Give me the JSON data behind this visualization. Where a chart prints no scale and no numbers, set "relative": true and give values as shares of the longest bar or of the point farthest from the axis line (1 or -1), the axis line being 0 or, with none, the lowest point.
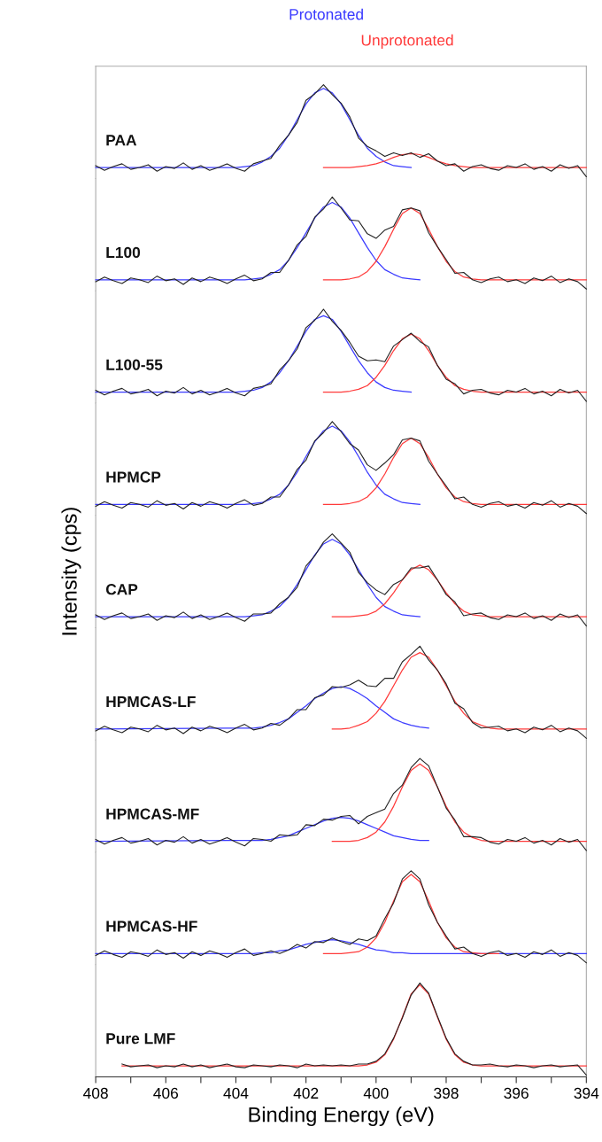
{
  "chart_data": [
    {
      "type": "line",
      "title": "PAA",
      "relative": true,
      "tick_labels": false,
      "xlim": [
        408,
        394
      ],
      "legend": "top",
      "x": [
        408,
        407.75,
        407.5,
        407.25,
        407,
        406.75,
        406.5,
        406.25,
        406,
        405.75,
        405.5,
        405.25,
        405,
        404.75,
        404.5,
        404.25,
        404,
        403.75,
        403.5,
        403.25,
        403,
        402.75,
        402.5,
        402.25,
        402,
        401.75,
        401.5,
        401.25,
        401,
        400.75,
        400.5,
        400.25,
        400,
        399.75,
        399.5,
        399.25,
        399,
        398.75,
        398.5,
        398.25,
        398,
        397.75,
        397.5,
        397.25,
        397,
        396.75,
        396.5,
        396.25,
        396,
        395.75,
        395.5,
        395.25,
        395,
        394.75,
        394.5,
        394.25,
        394
      ],
      "series": [
        {
          "color": "#222222",
          "values": [
            0.12,
            0.07,
            0.11,
            0.14,
            0.08,
            0.1,
            0.13,
            0.06,
            0.11,
            0.09,
            0.15,
            0.08,
            0.12,
            0.07,
            0.1,
            0.14,
            0.09,
            0.06,
            0.14,
            0.17,
            0.2,
            0.34,
            0.45,
            0.59,
            0.83,
            0.9,
            1.0,
            0.89,
            0.8,
            0.65,
            0.42,
            0.33,
            0.28,
            0.22,
            0.26,
            0.23,
            0.26,
            0.21,
            0.25,
            0.17,
            0.12,
            0.14,
            0.06,
            0.11,
            0.13,
            0.09,
            0.07,
            0.12,
            0.1,
            0.14,
            0.08,
            0.11,
            0.06,
            0.13,
            0.09,
            0.12,
            0.0
          ]
        },
        {
          "name": "Protonated",
          "color": "#3a3aff",
          "x": [
            408,
            404,
            403.75,
            403.5,
            403.25,
            403,
            402.75,
            402.5,
            402.25,
            402,
            401.75,
            401.5,
            401.25,
            401,
            400.75,
            400.5,
            400.25,
            400,
            399.75,
            399.5,
            399.25,
            399
          ],
          "values": [
            0.1,
            0.1,
            0.11,
            0.12,
            0.16,
            0.22,
            0.31,
            0.45,
            0.62,
            0.79,
            0.91,
            0.96,
            0.91,
            0.79,
            0.62,
            0.45,
            0.31,
            0.22,
            0.16,
            0.12,
            0.11,
            0.1
          ]
        },
        {
          "name": "Unprotonated",
          "color": "#ff3a3a",
          "x": [
            401.5,
            401.25,
            401,
            400.75,
            400.5,
            400.25,
            400,
            399.75,
            399.5,
            399.25,
            399,
            398.75,
            398.5,
            398.25,
            398,
            397.75,
            397.5,
            397.25,
            397,
            396.75,
            396.5,
            394
          ],
          "values": [
            0.1,
            0.1,
            0.1,
            0.1,
            0.11,
            0.12,
            0.14,
            0.17,
            0.21,
            0.24,
            0.25,
            0.24,
            0.21,
            0.17,
            0.14,
            0.12,
            0.11,
            0.1,
            0.1,
            0.1,
            0.1,
            0.1
          ]
        }
      ]
    },
    {
      "type": "line",
      "title": "L100",
      "relative": true,
      "tick_labels": false,
      "xlim": [
        408,
        394
      ],
      "x": [
        408,
        407.75,
        407.5,
        407.25,
        407,
        406.75,
        406.5,
        406.25,
        406,
        405.75,
        405.5,
        405.25,
        405,
        404.75,
        404.5,
        404.25,
        404,
        403.75,
        403.5,
        403.25,
        403,
        402.75,
        402.5,
        402.25,
        402,
        401.75,
        401.5,
        401.25,
        401,
        400.75,
        400.5,
        400.25,
        400,
        399.75,
        399.5,
        399.25,
        399,
        398.75,
        398.5,
        398.25,
        398,
        397.75,
        397.5,
        397.25,
        397,
        396.75,
        396.5,
        396.25,
        396,
        395.75,
        395.5,
        395.25,
        395,
        394.75,
        394.5,
        394.25,
        394
      ],
      "series": [
        {
          "color": "#222222",
          "values": [
            0.08,
            0.13,
            0.09,
            0.06,
            0.12,
            0.1,
            0.07,
            0.14,
            0.09,
            0.11,
            0.05,
            0.12,
            0.08,
            0.13,
            0.1,
            0.06,
            0.11,
            0.15,
            0.09,
            0.11,
            0.18,
            0.18,
            0.31,
            0.48,
            0.57,
            0.78,
            0.87,
            1.0,
            0.88,
            0.75,
            0.74,
            0.6,
            0.55,
            0.64,
            0.68,
            0.86,
            0.88,
            0.85,
            0.61,
            0.46,
            0.32,
            0.17,
            0.18,
            0.1,
            0.07,
            0.11,
            0.13,
            0.08,
            0.1,
            0.06,
            0.12,
            0.09,
            0.14,
            0.07,
            0.11,
            0.08,
            0.0
          ]
        },
        {
          "color": "#3a3aff",
          "x": [
            408,
            403.75,
            403.5,
            403.25,
            403,
            402.75,
            402.5,
            402.25,
            402,
            401.75,
            401.5,
            401.25,
            401,
            400.75,
            400.5,
            400.25,
            400,
            399.75,
            399.5,
            399.25,
            399,
            398.75
          ],
          "values": [
            0.1,
            0.1,
            0.11,
            0.12,
            0.16,
            0.21,
            0.31,
            0.45,
            0.61,
            0.77,
            0.89,
            0.94,
            0.89,
            0.77,
            0.61,
            0.45,
            0.31,
            0.21,
            0.16,
            0.12,
            0.11,
            0.1
          ]
        },
        {
          "color": "#ff3a3a",
          "x": [
            401.5,
            401.25,
            401,
            400.75,
            400.5,
            400.25,
            400,
            399.75,
            399.5,
            399.25,
            399,
            398.75,
            398.5,
            398.25,
            398,
            397.75,
            397.5,
            397.25,
            397,
            396.75,
            396.5,
            394
          ],
          "values": [
            0.1,
            0.1,
            0.1,
            0.11,
            0.13,
            0.19,
            0.3,
            0.46,
            0.65,
            0.82,
            0.88,
            0.82,
            0.65,
            0.46,
            0.3,
            0.19,
            0.13,
            0.11,
            0.1,
            0.1,
            0.1,
            0.1
          ]
        }
      ]
    },
    {
      "type": "line",
      "title": "L100-55",
      "relative": true,
      "tick_labels": false,
      "xlim": [
        408,
        394
      ],
      "x": [
        408,
        407.75,
        407.5,
        407.25,
        407,
        406.75,
        406.5,
        406.25,
        406,
        405.75,
        405.5,
        405.25,
        405,
        404.75,
        404.5,
        404.25,
        404,
        403.75,
        403.5,
        403.25,
        403,
        402.75,
        402.5,
        402.25,
        402,
        401.75,
        401.5,
        401.25,
        401,
        400.75,
        400.5,
        400.25,
        400,
        399.75,
        399.5,
        399.25,
        399,
        398.75,
        398.5,
        398.25,
        398,
        397.75,
        397.5,
        397.25,
        397,
        396.75,
        396.5,
        396.25,
        396,
        395.75,
        395.5,
        395.25,
        395,
        394.75,
        394.5,
        394.25,
        394
      ],
      "series": [
        {
          "color": "#222222",
          "values": [
            0.12,
            0.07,
            0.11,
            0.14,
            0.08,
            0.1,
            0.13,
            0.06,
            0.11,
            0.09,
            0.15,
            0.08,
            0.12,
            0.07,
            0.1,
            0.14,
            0.09,
            0.06,
            0.14,
            0.16,
            0.19,
            0.34,
            0.44,
            0.57,
            0.8,
            0.88,
            1.0,
            0.87,
            0.77,
            0.64,
            0.49,
            0.44,
            0.45,
            0.43,
            0.6,
            0.67,
            0.74,
            0.65,
            0.59,
            0.39,
            0.24,
            0.19,
            0.08,
            0.12,
            0.13,
            0.09,
            0.07,
            0.12,
            0.1,
            0.14,
            0.08,
            0.11,
            0.06,
            0.13,
            0.09,
            0.12,
            0.0
          ]
        },
        {
          "color": "#3a3aff",
          "x": [
            408,
            404,
            403.75,
            403.5,
            403.25,
            403,
            402.75,
            402.5,
            402.25,
            402,
            401.75,
            401.5,
            401.25,
            401,
            400.75,
            400.5,
            400.25,
            400,
            399.75,
            399.5,
            399.25,
            399
          ],
          "values": [
            0.1,
            0.1,
            0.11,
            0.12,
            0.15,
            0.21,
            0.31,
            0.44,
            0.6,
            0.76,
            0.89,
            0.93,
            0.89,
            0.76,
            0.6,
            0.44,
            0.31,
            0.21,
            0.15,
            0.12,
            0.11,
            0.1
          ]
        },
        {
          "color": "#ff3a3a",
          "x": [
            401.5,
            401.25,
            401,
            400.75,
            400.5,
            400.25,
            400,
            399.75,
            399.5,
            399.25,
            399,
            398.75,
            398.5,
            398.25,
            398,
            397.75,
            397.5,
            397.25,
            397,
            396.75,
            396.5,
            394
          ],
          "values": [
            0.1,
            0.1,
            0.1,
            0.11,
            0.13,
            0.17,
            0.26,
            0.39,
            0.55,
            0.68,
            0.73,
            0.68,
            0.55,
            0.39,
            0.26,
            0.17,
            0.13,
            0.11,
            0.1,
            0.1,
            0.1,
            0.1
          ]
        }
      ]
    },
    {
      "type": "line",
      "title": "HPMCP",
      "relative": true,
      "tick_labels": false,
      "xlim": [
        408,
        394
      ],
      "x": [
        408,
        407.75,
        407.5,
        407.25,
        407,
        406.75,
        406.5,
        406.25,
        406,
        405.75,
        405.5,
        405.25,
        405,
        404.75,
        404.5,
        404.25,
        404,
        403.75,
        403.5,
        403.25,
        403,
        402.75,
        402.5,
        402.25,
        402,
        401.75,
        401.5,
        401.25,
        401,
        400.75,
        400.5,
        400.25,
        400,
        399.75,
        399.5,
        399.25,
        399,
        398.75,
        398.5,
        398.25,
        398,
        397.75,
        397.5,
        397.25,
        397,
        396.75,
        396.5,
        396.25,
        396,
        395.75,
        395.5,
        395.25,
        395,
        394.75,
        394.5,
        394.25,
        394
      ],
      "series": [
        {
          "color": "#222222",
          "values": [
            0.08,
            0.13,
            0.09,
            0.06,
            0.12,
            0.1,
            0.07,
            0.14,
            0.09,
            0.11,
            0.05,
            0.12,
            0.08,
            0.13,
            0.1,
            0.06,
            0.11,
            0.15,
            0.09,
            0.11,
            0.18,
            0.18,
            0.31,
            0.48,
            0.58,
            0.79,
            0.88,
            1.0,
            0.89,
            0.76,
            0.69,
            0.53,
            0.47,
            0.55,
            0.64,
            0.8,
            0.82,
            0.79,
            0.57,
            0.43,
            0.3,
            0.16,
            0.18,
            0.1,
            0.07,
            0.11,
            0.13,
            0.08,
            0.1,
            0.06,
            0.12,
            0.09,
            0.14,
            0.07,
            0.11,
            0.08,
            0.0
          ]
        },
        {
          "color": "#3a3aff",
          "x": [
            408,
            403.75,
            403.5,
            403.25,
            403,
            402.75,
            402.5,
            402.25,
            402,
            401.75,
            401.5,
            401.25,
            401,
            400.75,
            400.5,
            400.25,
            400,
            399.75,
            399.5,
            399.25,
            399,
            398.75
          ],
          "values": [
            0.1,
            0.1,
            0.11,
            0.12,
            0.16,
            0.21,
            0.31,
            0.45,
            0.62,
            0.78,
            0.9,
            0.95,
            0.9,
            0.78,
            0.62,
            0.45,
            0.31,
            0.21,
            0.16,
            0.12,
            0.11,
            0.1
          ]
        },
        {
          "color": "#ff3a3a",
          "x": [
            401.5,
            401.25,
            401,
            400.75,
            400.5,
            400.25,
            400,
            399.75,
            399.5,
            399.25,
            399,
            398.75,
            398.5,
            398.25,
            398,
            397.75,
            397.5,
            397.25,
            397,
            396.75,
            396.5,
            394
          ],
          "values": [
            0.1,
            0.1,
            0.1,
            0.11,
            0.13,
            0.18,
            0.28,
            0.43,
            0.61,
            0.76,
            0.82,
            0.76,
            0.61,
            0.43,
            0.28,
            0.18,
            0.13,
            0.11,
            0.1,
            0.1,
            0.1,
            0.1
          ]
        }
      ]
    },
    {
      "type": "line",
      "title": "CAP",
      "ylabel": "Intensity (cps)",
      "relative": true,
      "tick_labels": false,
      "xlim": [
        408,
        394
      ],
      "x": [
        408,
        407.75,
        407.5,
        407.25,
        407,
        406.75,
        406.5,
        406.25,
        406,
        405.75,
        405.5,
        405.25,
        405,
        404.75,
        404.5,
        404.25,
        404,
        403.75,
        403.5,
        403.25,
        403,
        402.75,
        402.5,
        402.25,
        402,
        401.75,
        401.5,
        401.25,
        401,
        400.75,
        400.5,
        400.25,
        400,
        399.75,
        399.5,
        399.25,
        399,
        398.75,
        398.5,
        398.25,
        398,
        397.75,
        397.5,
        397.25,
        397,
        396.75,
        396.5,
        396.25,
        396,
        395.75,
        395.5,
        395.25,
        395,
        394.75,
        394.5,
        394.25,
        394
      ],
      "series": [
        {
          "color": "#222222",
          "values": [
            0.12,
            0.07,
            0.11,
            0.14,
            0.08,
            0.1,
            0.13,
            0.06,
            0.11,
            0.09,
            0.15,
            0.08,
            0.12,
            0.07,
            0.1,
            0.14,
            0.09,
            0.05,
            0.13,
            0.13,
            0.14,
            0.24,
            0.31,
            0.42,
            0.65,
            0.76,
            0.91,
            1.0,
            0.9,
            0.8,
            0.58,
            0.47,
            0.39,
            0.34,
            0.45,
            0.5,
            0.63,
            0.63,
            0.65,
            0.5,
            0.34,
            0.26,
            0.11,
            0.13,
            0.14,
            0.09,
            0.07,
            0.12,
            0.1,
            0.14,
            0.08,
            0.11,
            0.06,
            0.13,
            0.09,
            0.12,
            0.0
          ]
        },
        {
          "color": "#3a3aff",
          "x": [
            408,
            403.75,
            403.5,
            403.25,
            403,
            402.75,
            402.5,
            402.25,
            402,
            401.75,
            401.5,
            401.25,
            401,
            400.75,
            400.5,
            400.25,
            400,
            399.75,
            399.5,
            399.25,
            399,
            398.75
          ],
          "values": [
            0.1,
            0.1,
            0.11,
            0.12,
            0.16,
            0.21,
            0.31,
            0.45,
            0.61,
            0.77,
            0.89,
            0.94,
            0.89,
            0.77,
            0.61,
            0.45,
            0.31,
            0.21,
            0.16,
            0.12,
            0.11,
            0.1
          ]
        },
        {
          "color": "#ff3a3a",
          "x": [
            401.25,
            401,
            400.75,
            400.5,
            400.25,
            400,
            399.75,
            399.5,
            399.25,
            399,
            398.75,
            398.5,
            398.25,
            398,
            397.75,
            397.5,
            397.25,
            397,
            396.75,
            396.5,
            396.25,
            394
          ],
          "values": [
            0.1,
            0.1,
            0.1,
            0.11,
            0.12,
            0.16,
            0.24,
            0.36,
            0.5,
            0.61,
            0.66,
            0.61,
            0.5,
            0.36,
            0.24,
            0.16,
            0.12,
            0.11,
            0.1,
            0.1,
            0.1,
            0.1
          ]
        }
      ]
    },
    {
      "type": "line",
      "title": "HPMCAS-LF",
      "relative": true,
      "tick_labels": false,
      "xlim": [
        408,
        394
      ],
      "x": [
        408,
        407.75,
        407.5,
        407.25,
        407,
        406.75,
        406.5,
        406.25,
        406,
        405.75,
        405.5,
        405.25,
        405,
        404.75,
        404.5,
        404.25,
        404,
        403.75,
        403.5,
        403.25,
        403,
        402.75,
        402.5,
        402.25,
        402,
        401.75,
        401.5,
        401.25,
        401,
        400.75,
        400.5,
        400.25,
        400,
        399.75,
        399.5,
        399.25,
        399,
        398.75,
        398.5,
        398.25,
        398,
        397.75,
        397.5,
        397.25,
        397,
        396.75,
        396.5,
        396.25,
        396,
        395.75,
        395.5,
        395.25,
        395,
        394.75,
        394.5,
        394.25,
        394
      ],
      "series": [
        {
          "color": "#222222",
          "values": [
            0.08,
            0.13,
            0.09,
            0.06,
            0.12,
            0.1,
            0.07,
            0.14,
            0.09,
            0.11,
            0.05,
            0.12,
            0.08,
            0.13,
            0.1,
            0.06,
            0.11,
            0.15,
            0.09,
            0.11,
            0.16,
            0.14,
            0.21,
            0.31,
            0.31,
            0.44,
            0.47,
            0.56,
            0.55,
            0.58,
            0.63,
            0.57,
            0.56,
            0.65,
            0.65,
            0.83,
            0.91,
            1.0,
            0.85,
            0.74,
            0.59,
            0.38,
            0.32,
            0.17,
            0.11,
            0.12,
            0.13,
            0.08,
            0.1,
            0.06,
            0.12,
            0.09,
            0.14,
            0.07,
            0.11,
            0.08,
            0.0
          ]
        },
        {
          "color": "#3a3aff",
          "x": [
            408,
            403.5,
            403.25,
            403,
            402.75,
            402.5,
            402.25,
            402,
            401.75,
            401.5,
            401.25,
            401,
            400.75,
            400.5,
            400.25,
            400,
            399.75,
            399.5,
            399.25,
            399,
            398.75,
            398.5
          ],
          "values": [
            0.1,
            0.11,
            0.12,
            0.14,
            0.17,
            0.21,
            0.28,
            0.35,
            0.43,
            0.49,
            0.54,
            0.56,
            0.54,
            0.49,
            0.43,
            0.35,
            0.28,
            0.21,
            0.17,
            0.14,
            0.12,
            0.11
          ]
        },
        {
          "color": "#ff3a3a",
          "x": [
            401.25,
            401,
            400.75,
            400.5,
            400.25,
            400,
            399.75,
            399.5,
            399.25,
            399,
            398.75,
            398.5,
            398.25,
            398,
            397.75,
            397.5,
            397.25,
            397,
            396.75,
            396.5,
            396.25,
            394
          ],
          "values": [
            0.1,
            0.1,
            0.11,
            0.14,
            0.18,
            0.27,
            0.4,
            0.57,
            0.74,
            0.88,
            0.93,
            0.88,
            0.74,
            0.57,
            0.4,
            0.27,
            0.18,
            0.14,
            0.11,
            0.1,
            0.1,
            0.1
          ]
        }
      ]
    },
    {
      "type": "line",
      "title": "HPMCAS-MF",
      "relative": true,
      "tick_labels": false,
      "xlim": [
        408,
        394
      ],
      "x": [
        408,
        407.75,
        407.5,
        407.25,
        407,
        406.75,
        406.5,
        406.25,
        406,
        405.75,
        405.5,
        405.25,
        405,
        404.75,
        404.5,
        404.25,
        404,
        403.75,
        403.5,
        403.25,
        403,
        402.75,
        402.5,
        402.25,
        402,
        401.75,
        401.5,
        401.25,
        401,
        400.75,
        400.5,
        400.25,
        400,
        399.75,
        399.5,
        399.25,
        399,
        398.75,
        398.5,
        398.25,
        398,
        397.75,
        397.5,
        397.25,
        397,
        396.75,
        396.5,
        396.25,
        396,
        395.75,
        395.5,
        395.25,
        395,
        394.75,
        394.5,
        394.25,
        394
      ],
      "series": [
        {
          "color": "#222222",
          "values": [
            0.12,
            0.07,
            0.11,
            0.14,
            0.08,
            0.1,
            0.13,
            0.06,
            0.11,
            0.09,
            0.15,
            0.08,
            0.12,
            0.07,
            0.1,
            0.14,
            0.09,
            0.05,
            0.13,
            0.12,
            0.1,
            0.17,
            0.16,
            0.17,
            0.28,
            0.27,
            0.34,
            0.33,
            0.37,
            0.38,
            0.29,
            0.37,
            0.41,
            0.45,
            0.62,
            0.71,
            0.9,
            1.0,
            0.92,
            0.69,
            0.46,
            0.33,
            0.15,
            0.15,
            0.14,
            0.09,
            0.07,
            0.12,
            0.1,
            0.14,
            0.08,
            0.11,
            0.06,
            0.13,
            0.09,
            0.12,
            0.0
          ]
        },
        {
          "color": "#3a3aff",
          "x": [
            408,
            403.5,
            403.25,
            403,
            402.75,
            402.5,
            402.25,
            402,
            401.75,
            401.5,
            401.25,
            401,
            400.75,
            400.5,
            400.25,
            400,
            399.75,
            399.5,
            399.25,
            399,
            398.75,
            398.5
          ],
          "values": [
            0.1,
            0.11,
            0.11,
            0.12,
            0.14,
            0.16,
            0.2,
            0.24,
            0.28,
            0.32,
            0.35,
            0.36,
            0.35,
            0.32,
            0.28,
            0.24,
            0.2,
            0.16,
            0.14,
            0.12,
            0.11,
            0.11
          ]
        },
        {
          "color": "#ff3a3a",
          "x": [
            401.25,
            401,
            400.75,
            400.5,
            400.25,
            400,
            399.75,
            399.5,
            399.25,
            399,
            398.75,
            398.5,
            398.25,
            398,
            397.75,
            397.5,
            397.25,
            397,
            396.75,
            396.5,
            396.25,
            394
          ],
          "values": [
            0.1,
            0.1,
            0.1,
            0.11,
            0.14,
            0.2,
            0.31,
            0.48,
            0.69,
            0.87,
            0.94,
            0.87,
            0.69,
            0.48,
            0.31,
            0.2,
            0.14,
            0.11,
            0.1,
            0.1,
            0.1,
            0.1
          ]
        }
      ]
    },
    {
      "type": "line",
      "title": "HPMCAS-HF",
      "relative": true,
      "tick_labels": false,
      "xlim": [
        408,
        394
      ],
      "x": [
        408,
        407.75,
        407.5,
        407.25,
        407,
        406.75,
        406.5,
        406.25,
        406,
        405.75,
        405.5,
        405.25,
        405,
        404.75,
        404.5,
        404.25,
        404,
        403.75,
        403.5,
        403.25,
        403,
        402.75,
        402.5,
        402.25,
        402,
        401.75,
        401.5,
        401.25,
        401,
        400.75,
        400.5,
        400.25,
        400,
        399.75,
        399.5,
        399.25,
        399,
        398.75,
        398.5,
        398.25,
        398,
        397.75,
        397.5,
        397.25,
        397,
        396.75,
        396.5,
        396.25,
        396,
        395.75,
        395.5,
        395.25,
        395,
        394.75,
        394.5,
        394.25,
        394
      ],
      "series": [
        {
          "color": "#222222",
          "values": [
            0.08,
            0.13,
            0.09,
            0.06,
            0.12,
            0.1,
            0.07,
            0.14,
            0.09,
            0.11,
            0.05,
            0.12,
            0.08,
            0.13,
            0.1,
            0.06,
            0.11,
            0.15,
            0.08,
            0.1,
            0.13,
            0.1,
            0.14,
            0.2,
            0.16,
            0.23,
            0.22,
            0.27,
            0.23,
            0.2,
            0.26,
            0.24,
            0.29,
            0.48,
            0.65,
            0.91,
            1.0,
            0.91,
            0.63,
            0.44,
            0.29,
            0.15,
            0.17,
            0.1,
            0.07,
            0.11,
            0.13,
            0.08,
            0.1,
            0.06,
            0.12,
            0.09,
            0.14,
            0.07,
            0.11,
            0.08,
            0.0
          ]
        },
        {
          "color": "#3a3aff",
          "x": [
            408,
            403.75,
            403.5,
            403.25,
            403,
            402.75,
            402.5,
            402.25,
            402,
            401.75,
            401.5,
            401.25,
            401,
            400.75,
            400.5,
            400.25,
            400,
            399.75,
            399.5,
            399.25,
            399,
            398.75,
            394
          ],
          "values": [
            0.1,
            0.1,
            0.1,
            0.11,
            0.11,
            0.13,
            0.14,
            0.17,
            0.2,
            0.22,
            0.24,
            0.25,
            0.24,
            0.22,
            0.2,
            0.17,
            0.14,
            0.13,
            0.11,
            0.11,
            0.1,
            0.1,
            0.1
          ]
        },
        {
          "color": "#ff3a3a",
          "x": [
            401.5,
            401.25,
            401,
            400.75,
            400.5,
            400.25,
            400,
            399.75,
            399.5,
            399.25,
            399,
            398.75,
            398.5,
            398.25,
            398,
            397.75,
            397.5,
            397.25,
            397,
            396.75,
            396.5
          ],
          "values": [
            0.1,
            0.1,
            0.1,
            0.11,
            0.12,
            0.17,
            0.27,
            0.44,
            0.67,
            0.88,
            0.96,
            0.88,
            0.67,
            0.44,
            0.27,
            0.17,
            0.12,
            0.11,
            0.1,
            0.1,
            0.1
          ]
        }
      ]
    },
    {
      "type": "line",
      "title": "Pure LMF",
      "xlabel": "Binding Energy (eV)",
      "relative": true,
      "tick_labels": "x",
      "xlim": [
        408,
        394
      ],
      "xticks": [
        408,
        {
          "value": 407,
          "label": null
        },
        406,
        {
          "value": 405,
          "label": null
        },
        404,
        {
          "value": 403,
          "label": null
        },
        402,
        {
          "value": 401,
          "label": null
        },
        400,
        {
          "value": 399,
          "label": null
        },
        398,
        {
          "value": 397,
          "label": null
        },
        396,
        {
          "value": 395,
          "label": null
        },
        394
      ],
      "x": [
        407.25,
        407,
        406.75,
        406.5,
        406.25,
        406,
        405.75,
        405.5,
        405.25,
        405,
        404.75,
        404.5,
        404.25,
        404,
        403.75,
        403.5,
        403.25,
        403,
        402.75,
        402.5,
        402.25,
        402,
        401.75,
        401.5,
        401.25,
        401,
        400.75,
        400.5,
        400.25,
        400,
        399.75,
        399.5,
        399.25,
        399,
        398.75,
        398.5,
        398.25,
        398,
        397.75,
        397.5,
        397.25,
        397,
        396.75,
        396.5,
        396.25,
        396,
        395.75,
        395.5,
        395.25,
        395,
        394.75,
        394.5,
        394.25,
        394
      ],
      "series": [
        {
          "color": "#222222",
          "values": [
            0.12,
            0.09,
            0.1,
            0.11,
            0.08,
            0.1,
            0.09,
            0.12,
            0.09,
            0.11,
            0.08,
            0.1,
            0.12,
            0.09,
            0.08,
            0.11,
            0.1,
            0.09,
            0.11,
            0.1,
            0.08,
            0.12,
            0.1,
            0.11,
            0.1,
            0.11,
            0.1,
            0.12,
            0.12,
            0.15,
            0.23,
            0.4,
            0.62,
            0.87,
            1.0,
            0.89,
            0.64,
            0.4,
            0.23,
            0.15,
            0.11,
            0.11,
            0.12,
            0.1,
            0.09,
            0.11,
            0.1,
            0.08,
            0.1,
            0.11,
            0.09,
            0.1,
            0.11,
            0.0
          ]
        },
        {
          "color": "#ff3a3a",
          "x": [
            407.25,
            401.25,
            401,
            400.75,
            400.5,
            400.25,
            400,
            399.75,
            399.5,
            399.25,
            399,
            398.75,
            398.5,
            398.25,
            398,
            397.75,
            397.5,
            397.25,
            397,
            396.75,
            396.5,
            396.25,
            394
          ],
          "values": [
            0.1,
            0.1,
            0.1,
            0.1,
            0.1,
            0.11,
            0.14,
            0.22,
            0.39,
            0.63,
            0.88,
            0.98,
            0.88,
            0.63,
            0.39,
            0.22,
            0.14,
            0.11,
            0.1,
            0.1,
            0.1,
            0.1,
            0.1
          ]
        }
      ]
    }
  ]
}
